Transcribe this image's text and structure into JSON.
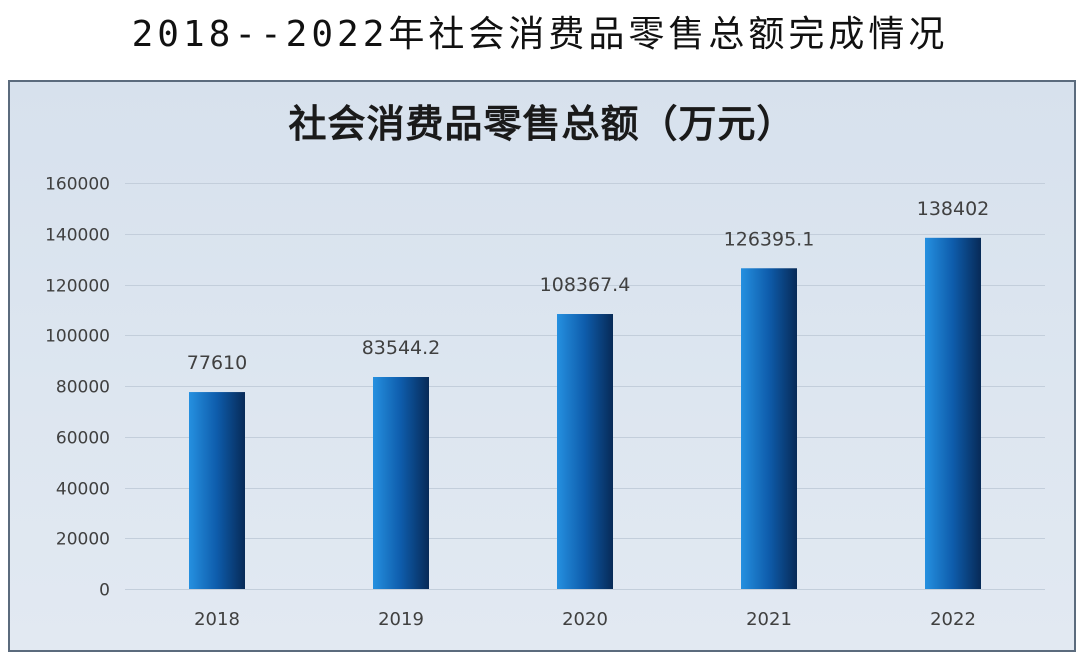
{
  "page": {
    "heading": "2018--2022年社会消费品零售总额完成情况"
  },
  "chart_data": {
    "type": "bar",
    "title": "社会消费品零售总额（万元）",
    "categories": [
      "2018",
      "2019",
      "2020",
      "2021",
      "2022"
    ],
    "values": [
      77610,
      83544.2,
      108367.4,
      126395.1,
      138402
    ],
    "ylim": [
      0,
      160000
    ],
    "yticks": [
      0,
      20000,
      40000,
      60000,
      80000,
      100000,
      120000,
      140000,
      160000
    ],
    "grid": true,
    "data_labels": true,
    "colors": {
      "bar_gradient": [
        "#2590e0",
        "#0e5cab",
        "#072a57"
      ],
      "gridline": "#c3cedb",
      "frame_border": "#5b6b7d"
    }
  }
}
